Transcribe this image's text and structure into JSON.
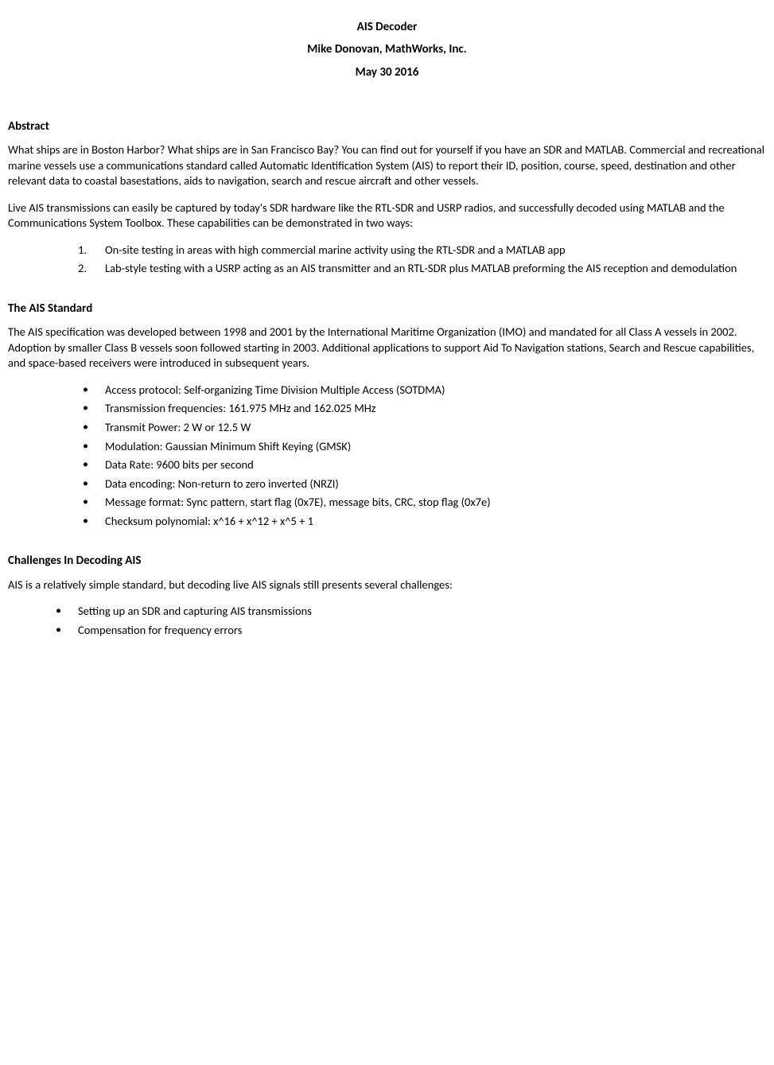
{
  "header": {
    "title": "AIS Decoder",
    "author": "Mike Donovan, MathWorks, Inc.",
    "date": "May 30 2016"
  },
  "sections": {
    "abstract": {
      "heading": "Abstract",
      "para1": "What ships are in Boston Harbor? What ships are in San Francisco Bay?  You can find out for yourself if you have an SDR and MATLAB.  Commercial and recreational marine vessels use a communications standard called Automatic Identification System (AIS) to report their ID, position, course, speed, destination and other relevant data to coastal basestations, aids to navigation, search and rescue aircraft and other vessels.",
      "para2": "Live AIS transmissions can easily be captured by today's SDR hardware like the RTL-SDR and USRP radios, and successfully decoded using MATLAB and the Communications System Toolbox.  These capabilities can be demonstrated in two ways:",
      "list": [
        "On-site testing in areas with high commercial marine activity using the RTL-SDR and a MATLAB app",
        "Lab-style testing with a USRP acting as an AIS transmitter and an RTL-SDR plus MATLAB preforming the AIS reception and demodulation"
      ]
    },
    "standard": {
      "heading": "The AIS Standard",
      "para1": "The AIS specification was developed between 1998 and 2001 by the International Maritime Organization (IMO) and mandated for all Class A vessels in 2002.  Adoption by smaller Class B vessels soon followed starting in 2003. Additional applications to support Aid To Navigation stations, Search and Rescue capabilities, and space-based receivers were introduced in subsequent years.",
      "list": [
        "Access protocol: Self-organizing Time Division Multiple Access (SOTDMA)",
        "Transmission frequencies: 161.975 MHz and 162.025 MHz",
        "Transmit Power: 2 W or 12.5 W",
        "Modulation: Gaussian Minimum Shift Keying (GMSK)",
        "Data Rate: 9600 bits per second",
        "Data encoding: Non-return to zero inverted (NRZI)",
        "Message format: Sync pattern, start flag (0x7E), message bits, CRC, stop flag (0x7e)",
        "Checksum polynomial: x^16 + x^12 + x^5 + 1"
      ]
    },
    "challenges": {
      "heading": "Challenges In Decoding AIS",
      "para1": "AIS is a relatively simple standard, but decoding live AIS signals still presents several challenges:",
      "list": [
        "Setting up an SDR and capturing AIS transmissions",
        "Compensation for frequency errors"
      ]
    }
  }
}
